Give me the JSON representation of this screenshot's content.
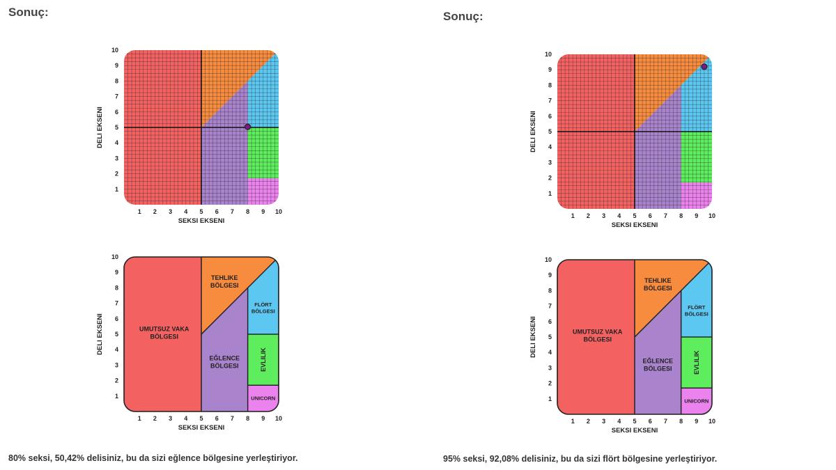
{
  "panels": [
    {
      "heading": "Sonuç:",
      "result_text": "80% seksi, 50,42% delisiniz, bu da sizi eğlence bölgesine yerleştiriyor.",
      "sexy_value": 8,
      "crazy_value": 5.04
    },
    {
      "heading": "Sonuç:",
      "result_text": "95% seksi, 92,08% delisiniz, bu da sizi flört bölgesine yerleştiriyor.",
      "sexy_value": 9.5,
      "crazy_value": 9.2
    }
  ],
  "chart_data": {
    "type": "scatter",
    "title": "",
    "xlabel": "SEKSI EKSENI",
    "ylabel": "DELI EKSENI",
    "xlim": [
      0,
      10
    ],
    "ylim": [
      0,
      10
    ],
    "x_ticks": [
      "1",
      "2",
      "3",
      "4",
      "5",
      "6",
      "7",
      "8",
      "9",
      "10"
    ],
    "y_ticks": [
      "1",
      "2",
      "3",
      "4",
      "5",
      "6",
      "7",
      "8",
      "9",
      "10"
    ],
    "grid": true,
    "points": [
      {
        "x": 8,
        "y": 5.04
      },
      {
        "x": 9.5,
        "y": 9.2
      }
    ],
    "zones": [
      {
        "id": "umutsuz",
        "label": [
          "UMUTSUZ VAKA",
          "BÖLGESI"
        ],
        "color": "#f46161",
        "polygon": [
          [
            0,
            0
          ],
          [
            5,
            0
          ],
          [
            5,
            10
          ],
          [
            0,
            10
          ]
        ],
        "label_at": [
          2.6,
          5.1
        ]
      },
      {
        "id": "tehlike",
        "label": [
          "TEHLIKE",
          "BÖLGESI"
        ],
        "color": "#f78b3e",
        "polygon": [
          [
            5,
            5
          ],
          [
            5,
            10
          ],
          [
            10,
            10
          ]
        ],
        "label_at": [
          6.5,
          8.4
        ]
      },
      {
        "id": "eglence",
        "label": [
          "EĞLENCE",
          "BÖLGESI"
        ],
        "color": "#a983cc",
        "polygon": [
          [
            5,
            0
          ],
          [
            8,
            0
          ],
          [
            8,
            8
          ],
          [
            5,
            5
          ]
        ],
        "label_at": [
          6.5,
          3.2
        ]
      },
      {
        "id": "flort",
        "label": [
          "FLÖRT",
          "BÖLGESI"
        ],
        "color": "#5cc8f2",
        "polygon": [
          [
            8,
            5
          ],
          [
            10,
            5
          ],
          [
            10,
            10
          ],
          [
            8,
            8
          ]
        ],
        "label_at": [
          9.0,
          6.7
        ]
      },
      {
        "id": "evlilik",
        "label": [
          "EVLILIK"
        ],
        "color": "#5ded5d",
        "polygon": [
          [
            8,
            1.7
          ],
          [
            10,
            1.7
          ],
          [
            10,
            5
          ],
          [
            8,
            5
          ]
        ],
        "label_at": [
          9.0,
          3.35
        ],
        "vertical": true
      },
      {
        "id": "unicorn",
        "label": [
          "UNICORN"
        ],
        "color": "#ec82ee",
        "polygon": [
          [
            8,
            0
          ],
          [
            10,
            0
          ],
          [
            10,
            1.7
          ],
          [
            8,
            1.7
          ]
        ],
        "label_at": [
          9.0,
          0.85
        ]
      }
    ]
  }
}
